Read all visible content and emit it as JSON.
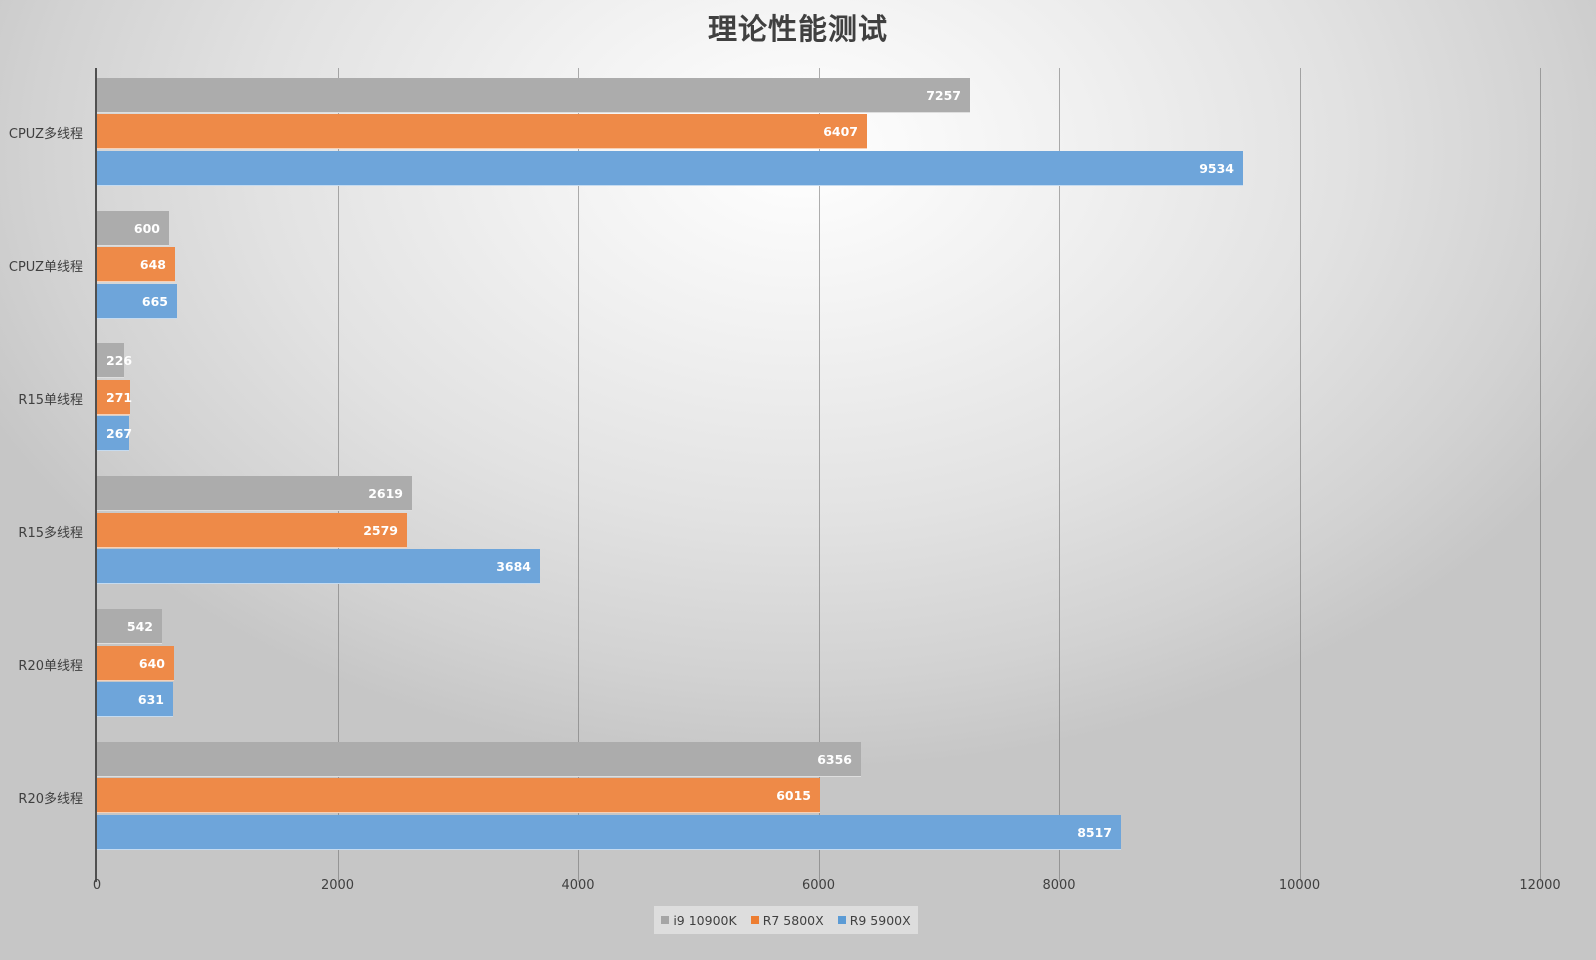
{
  "chart_data": {
    "type": "bar",
    "orientation": "horizontal",
    "title": "理论性能测试",
    "xlabel": "",
    "ylabel": "",
    "xlim": [
      0,
      12000
    ],
    "x_ticks": [
      0,
      2000,
      4000,
      6000,
      8000,
      10000,
      12000
    ],
    "grid": true,
    "legend_position": "bottom",
    "categories": [
      "CPUZ多线程",
      "CPUZ单线程",
      "R15单线程",
      "R15多线程",
      "R20单线程",
      "R20多线程"
    ],
    "series": [
      {
        "name": "i9 10900K",
        "color": "#a5a5a5",
        "values": [
          7257,
          600,
          226,
          2619,
          542,
          6356
        ]
      },
      {
        "name": "R7 5800X",
        "color": "#ed7d31",
        "values": [
          6407,
          648,
          271,
          2579,
          640,
          6015
        ]
      },
      {
        "name": "R9 5900X",
        "color": "#5b9bd5",
        "values": [
          9534,
          665,
          267,
          3684,
          631,
          8517
        ]
      }
    ]
  },
  "title": "理论性能测试",
  "axis": {
    "ticks": [
      "0",
      "2000",
      "4000",
      "6000",
      "8000",
      "10000",
      "12000"
    ]
  },
  "categories": [
    "CPUZ多线程",
    "CPUZ单线程",
    "R15单线程",
    "R15多线程",
    "R20单线程",
    "R20多线程"
  ],
  "legend": [
    {
      "label": "i9 10900K",
      "color": "#a5a5a5"
    },
    {
      "label": "R7 5800X",
      "color": "#ed7d31"
    },
    {
      "label": "R9 5900X",
      "color": "#5b9bd5"
    }
  ]
}
